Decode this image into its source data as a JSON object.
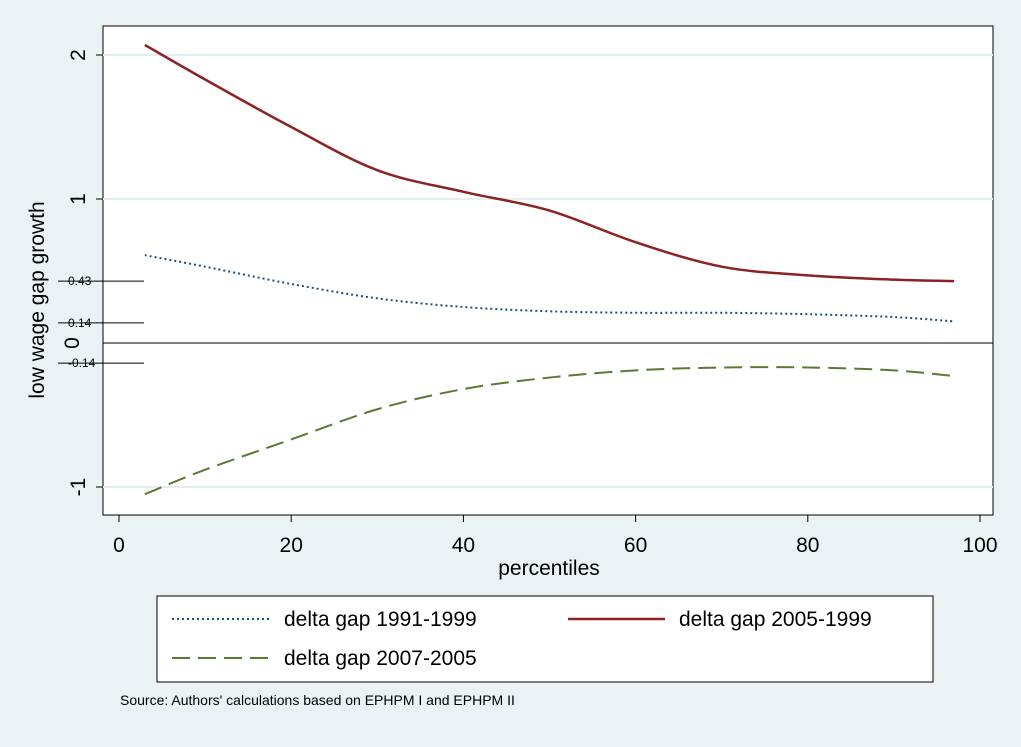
{
  "chart_data": {
    "type": "line",
    "title": "",
    "xlabel": "percentiles",
    "ylabel": "low wage gap growth",
    "xlim": [
      0,
      100
    ],
    "ylim": [
      -1,
      2
    ],
    "x_ticks": [
      0,
      20,
      40,
      60,
      80,
      100
    ],
    "y_ticks": [
      -1,
      1,
      2
    ],
    "y_zero_label": "0",
    "y_small_ticks": [
      0.43,
      0.14,
      -0.14
    ],
    "grid": true,
    "legend_position": "bottom",
    "x": [
      3,
      10,
      20,
      30,
      40,
      50,
      60,
      70,
      80,
      90,
      97
    ],
    "series": [
      {
        "name": "delta gap 1991-1999",
        "style": "dotted",
        "color": "#1f4e79",
        "values": [
          0.61,
          0.53,
          0.41,
          0.31,
          0.25,
          0.22,
          0.21,
          0.21,
          0.2,
          0.18,
          0.15
        ]
      },
      {
        "name": "delta gap 2005-1999",
        "style": "solid",
        "color": "#8b2323",
        "values": [
          2.07,
          1.83,
          1.5,
          1.2,
          1.05,
          0.92,
          0.7,
          0.53,
          0.47,
          0.44,
          0.43
        ]
      },
      {
        "name": "delta gap 2007-2005",
        "style": "dashed",
        "color": "#5a7a33",
        "values": [
          -1.05,
          -0.88,
          -0.67,
          -0.46,
          -0.32,
          -0.24,
          -0.19,
          -0.17,
          -0.17,
          -0.19,
          -0.23
        ]
      }
    ]
  },
  "note": "Source: Authors' calculations based on EPHPM I and EPHPM II"
}
